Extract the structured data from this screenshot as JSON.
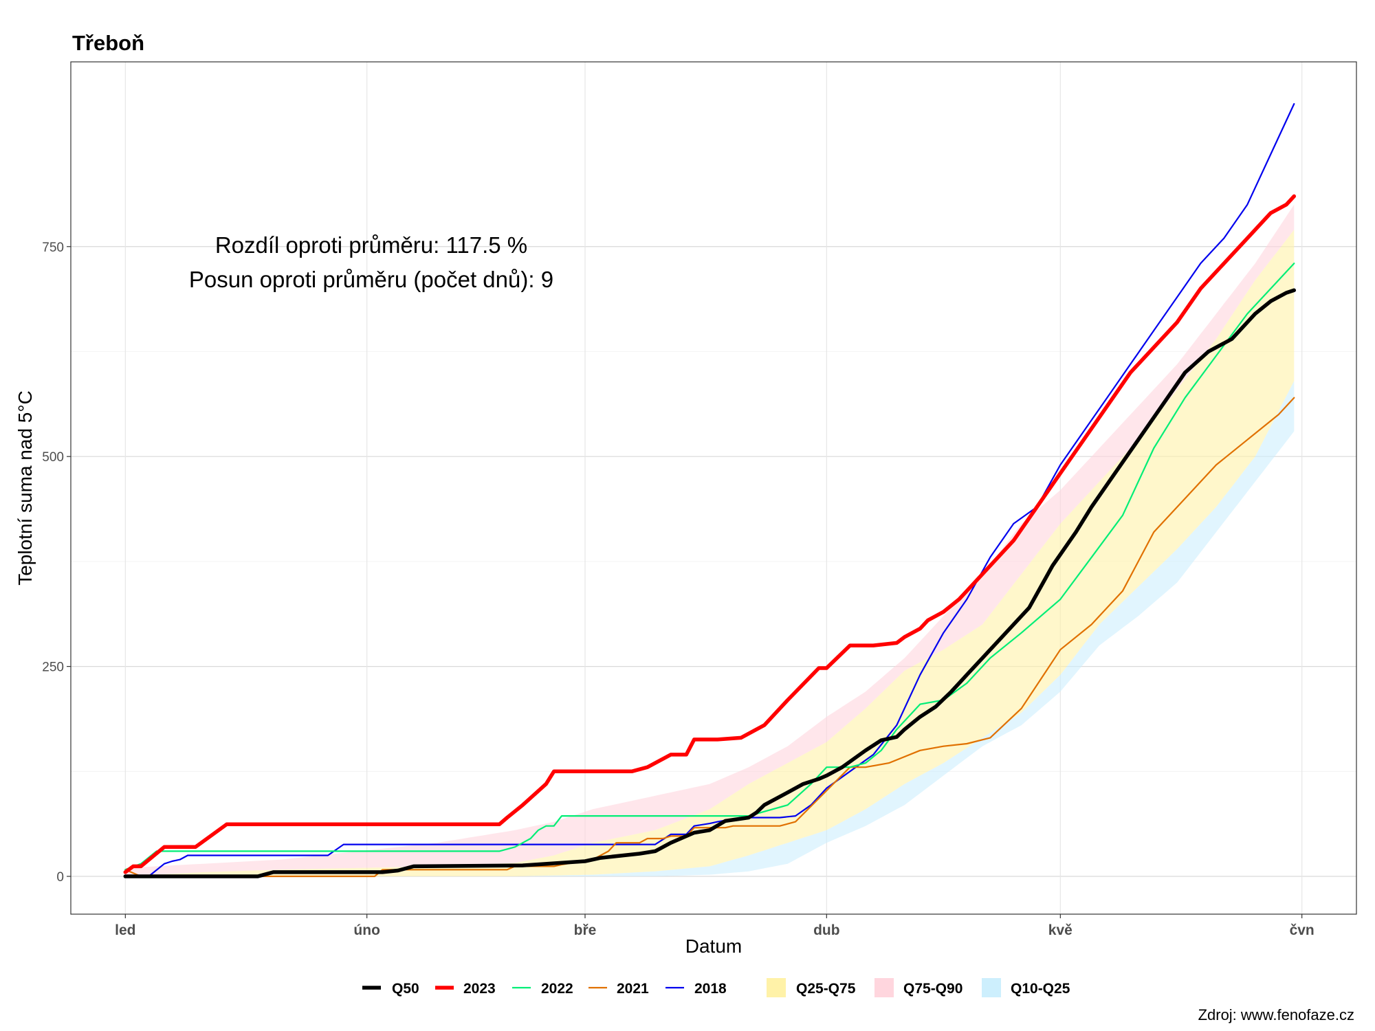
{
  "chart_data": {
    "type": "line",
    "title": "Třeboň",
    "xlabel": "Datum",
    "ylabel": "Teplotní suma nad 5°C",
    "source": "Zdroj: www.fenofaze.cz",
    "annotations": [
      "Rozdíl oproti průměru: 117.5 %",
      "Posun oproti průměru (počet dnů): 9"
    ],
    "x_range_days": [
      -7,
      158
    ],
    "ylim": [
      -45,
      970
    ],
    "y_ticks": [
      0,
      250,
      500,
      750
    ],
    "y_tick_labels": [
      "0",
      "250",
      "500",
      "750"
    ],
    "x_ticks": [
      {
        "day": 0,
        "label": "led"
      },
      {
        "day": 31,
        "label": "úno"
      },
      {
        "day": 59,
        "label": "bře"
      },
      {
        "day": 90,
        "label": "dub"
      },
      {
        "day": 120,
        "label": "kvě"
      },
      {
        "day": 151,
        "label": "čvn"
      }
    ],
    "grid": true,
    "legend_position": "bottom",
    "legend": {
      "lines": [
        {
          "label": "Q50",
          "color": "#000000"
        },
        {
          "label": "2023",
          "color": "#ff0000"
        },
        {
          "label": "2022",
          "color": "#00ee76"
        },
        {
          "label": "2021",
          "color": "#e07000"
        },
        {
          "label": "2018",
          "color": "#0000ee"
        }
      ],
      "bands": [
        {
          "label": "Q25-Q75",
          "color": "#fff2a8"
        },
        {
          "label": "Q75-Q90",
          "color": "#ffd6de"
        },
        {
          "label": "Q10-Q25",
          "color": "#cdeffd"
        }
      ]
    },
    "bands": {
      "Q10": {
        "x": [
          0,
          60,
          68,
          75,
          80,
          85,
          90,
          95,
          100,
          105,
          110,
          115,
          120,
          125,
          130,
          135,
          140,
          145,
          150
        ],
        "y": [
          0,
          0,
          0,
          2,
          6,
          15,
          40,
          60,
          85,
          120,
          155,
          180,
          220,
          275,
          310,
          350,
          410,
          470,
          530
        ]
      },
      "Q25": {
        "x": [
          0,
          30,
          50,
          60,
          68,
          75,
          80,
          85,
          90,
          95,
          100,
          105,
          110,
          115,
          120,
          125,
          130,
          135,
          140,
          145,
          150
        ],
        "y": [
          0,
          0,
          0,
          2,
          6,
          12,
          25,
          40,
          55,
          80,
          110,
          135,
          165,
          195,
          240,
          300,
          345,
          390,
          440,
          500,
          590
        ]
      },
      "Q75": {
        "x": [
          0,
          10,
          20,
          30,
          40,
          50,
          55,
          60,
          68,
          75,
          80,
          85,
          90,
          95,
          100,
          105,
          110,
          115,
          120,
          125,
          130,
          135,
          140,
          145,
          150
        ],
        "y": [
          0,
          5,
          8,
          10,
          12,
          16,
          25,
          40,
          55,
          80,
          110,
          135,
          160,
          200,
          245,
          270,
          300,
          360,
          420,
          470,
          520,
          580,
          640,
          710,
          770
        ]
      },
      "Q90": {
        "x": [
          0,
          10,
          20,
          30,
          40,
          50,
          55,
          60,
          65,
          70,
          75,
          80,
          85,
          90,
          95,
          100,
          105,
          110,
          115,
          120,
          125,
          130,
          135,
          140,
          145,
          150
        ],
        "y": [
          10,
          15,
          20,
          30,
          40,
          55,
          65,
          80,
          90,
          100,
          110,
          130,
          155,
          190,
          220,
          260,
          310,
          360,
          420,
          460,
          510,
          560,
          610,
          670,
          730,
          800
        ]
      }
    },
    "series": [
      {
        "name": "Q50",
        "x": [
          0,
          17,
          19,
          33,
          35,
          37,
          51,
          59,
          61,
          66,
          68,
          70,
          73,
          75,
          77,
          80,
          81,
          82,
          85,
          87,
          89,
          90,
          92,
          95,
          97,
          99,
          100,
          102,
          104,
          106,
          108,
          110,
          113,
          116,
          119,
          122,
          124,
          127,
          130,
          133,
          136,
          139,
          142,
          145,
          147,
          149,
          150
        ],
        "y": [
          0,
          0,
          5,
          5,
          7,
          12,
          13,
          18,
          22,
          27,
          30,
          40,
          52,
          55,
          66,
          70,
          76,
          85,
          100,
          110,
          116,
          120,
          130,
          150,
          162,
          166,
          175,
          190,
          202,
          220,
          240,
          260,
          290,
          320,
          370,
          410,
          440,
          480,
          520,
          560,
          600,
          625,
          640,
          670,
          685,
          695,
          698
        ]
      },
      {
        "name": "2023",
        "x": [
          0,
          1,
          2,
          5,
          9,
          13,
          48,
          49,
          51,
          54,
          55,
          60,
          65,
          67,
          70,
          72,
          73,
          76,
          79,
          80,
          81,
          82,
          85,
          89,
          90,
          93,
          96,
          99,
          100,
          102,
          103,
          105,
          107,
          110,
          114,
          117,
          120,
          123,
          126,
          129,
          132,
          135,
          138,
          141,
          144,
          147,
          149,
          150
        ],
        "y": [
          5,
          12,
          12,
          35,
          35,
          62,
          62,
          70,
          85,
          110,
          125,
          125,
          125,
          130,
          145,
          145,
          163,
          163,
          165,
          170,
          175,
          180,
          210,
          248,
          248,
          275,
          275,
          278,
          285,
          295,
          305,
          315,
          330,
          360,
          400,
          440,
          480,
          520,
          560,
          600,
          630,
          660,
          700,
          730,
          760,
          790,
          800,
          810
        ]
      },
      {
        "name": "2022",
        "x": [
          0,
          2,
          4,
          40,
          41,
          47,
          48,
          50,
          52,
          53,
          54,
          55,
          56,
          65,
          80,
          85,
          88,
          90,
          93,
          95,
          97,
          99,
          102,
          105,
          108,
          111,
          115,
          120,
          124,
          128,
          132,
          136,
          140,
          144,
          148,
          150
        ],
        "y": [
          8,
          15,
          30,
          30,
          30,
          30,
          30,
          35,
          45,
          55,
          60,
          60,
          72,
          72,
          72,
          85,
          110,
          130,
          130,
          135,
          150,
          175,
          205,
          210,
          230,
          260,
          290,
          330,
          380,
          430,
          510,
          570,
          620,
          670,
          710,
          730
        ]
      },
      {
        "name": "2021",
        "x": [
          0,
          2,
          32,
          33,
          49,
          50,
          55,
          56,
          60,
          62,
          63,
          66,
          67,
          69,
          70,
          72,
          73,
          77,
          78,
          81,
          84,
          86,
          93,
          95,
          98,
          102,
          105,
          108,
          111,
          115,
          120,
          124,
          128,
          132,
          136,
          140,
          144,
          148,
          150
        ],
        "y": [
          8,
          0,
          0,
          8,
          8,
          12,
          12,
          14,
          20,
          30,
          40,
          40,
          45,
          45,
          48,
          48,
          58,
          58,
          60,
          60,
          60,
          65,
          130,
          130,
          135,
          150,
          155,
          158,
          165,
          200,
          270,
          300,
          340,
          410,
          450,
          490,
          520,
          550,
          570
        ]
      },
      {
        "name": "2018",
        "x": [
          0,
          3,
          5,
          6,
          7,
          8,
          26,
          28,
          32,
          35,
          40,
          48,
          60,
          68,
          70,
          72,
          73,
          75,
          76,
          79,
          80,
          82,
          84,
          86,
          88,
          90,
          93,
          96,
          99,
          102,
          105,
          108,
          111,
          114,
          117,
          120,
          123,
          126,
          129,
          132,
          135,
          138,
          141,
          144,
          147,
          150
        ],
        "y": [
          0,
          0,
          15,
          18,
          20,
          25,
          25,
          38,
          38,
          38,
          38,
          38,
          38,
          38,
          50,
          50,
          60,
          63,
          65,
          70,
          70,
          70,
          70,
          72,
          85,
          105,
          125,
          145,
          180,
          240,
          290,
          330,
          380,
          420,
          440,
          490,
          530,
          570,
          610,
          650,
          690,
          730,
          760,
          800,
          860,
          920
        ]
      }
    ]
  }
}
